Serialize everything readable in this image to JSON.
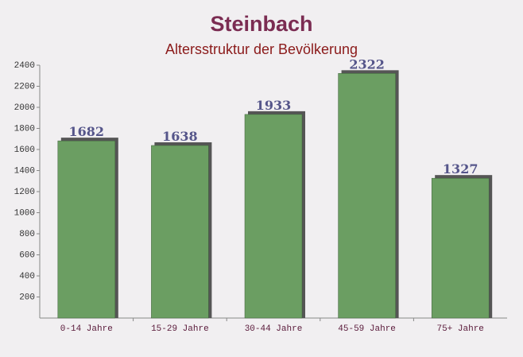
{
  "chart_data": {
    "type": "bar",
    "title": "Steinbach",
    "subtitle": "Altersstruktur der Bevölkerung",
    "categories": [
      "0-14 Jahre",
      "15-29 Jahre",
      "30-44 Jahre",
      "45-59 Jahre",
      "75+ Jahre"
    ],
    "values": [
      1682,
      1638,
      1933,
      2322,
      1327
    ],
    "color": "#6b9e62",
    "ylim": [
      0,
      2400
    ],
    "yticks": [
      200,
      400,
      600,
      800,
      1000,
      1200,
      1400,
      1600,
      1800,
      2000,
      2200,
      2400
    ]
  }
}
